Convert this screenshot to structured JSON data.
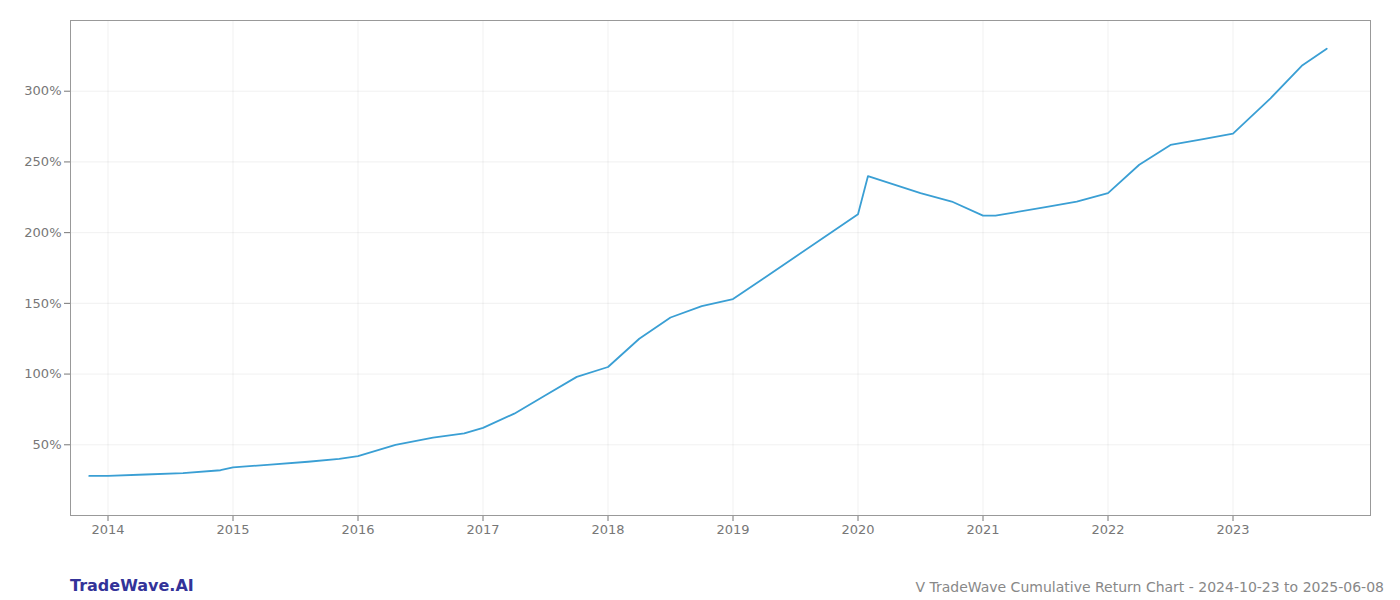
{
  "chart_data": {
    "type": "line",
    "title": "V TradeWave Cumulative Return Chart - 2024-10-23 to 2025-06-08",
    "annotations": [
      "TradeWave.AI"
    ],
    "x": [
      2013.85,
      2014.0,
      2014.3,
      2014.6,
      2014.9,
      2015.0,
      2015.3,
      2015.6,
      2015.85,
      2016.0,
      2016.3,
      2016.6,
      2016.85,
      2017.0,
      2017.25,
      2017.5,
      2017.75,
      2018.0,
      2018.25,
      2018.5,
      2018.75,
      2019.0,
      2019.25,
      2019.5,
      2019.75,
      2020.0,
      2020.08,
      2020.5,
      2020.75,
      2021.0,
      2021.1,
      2021.5,
      2021.75,
      2022.0,
      2022.25,
      2022.5,
      2022.75,
      2023.0,
      2023.3,
      2023.55,
      2023.75
    ],
    "values": [
      28,
      28,
      29,
      30,
      32,
      34,
      36,
      38,
      40,
      42,
      50,
      55,
      58,
      62,
      72,
      85,
      98,
      105,
      125,
      140,
      148,
      153,
      168,
      183,
      198,
      213,
      240,
      228,
      222,
      212,
      212,
      218,
      222,
      228,
      248,
      262,
      266,
      270,
      295,
      318,
      330
    ],
    "color": "#3a9fd4",
    "xlim": [
      2013.7,
      2024.1
    ],
    "ylim": [
      0,
      350
    ],
    "xticks": [
      2014,
      2015,
      2016,
      2017,
      2018,
      2019,
      2020,
      2021,
      2022,
      2023
    ],
    "yticks": [
      {
        "value": 50,
        "label": "50%"
      },
      {
        "value": 100,
        "label": "100%"
      },
      {
        "value": 150,
        "label": "150%"
      },
      {
        "value": 200,
        "label": "200%"
      },
      {
        "value": 250,
        "label": "250%"
      },
      {
        "value": 300,
        "label": "300%"
      }
    ],
    "grid": true
  }
}
